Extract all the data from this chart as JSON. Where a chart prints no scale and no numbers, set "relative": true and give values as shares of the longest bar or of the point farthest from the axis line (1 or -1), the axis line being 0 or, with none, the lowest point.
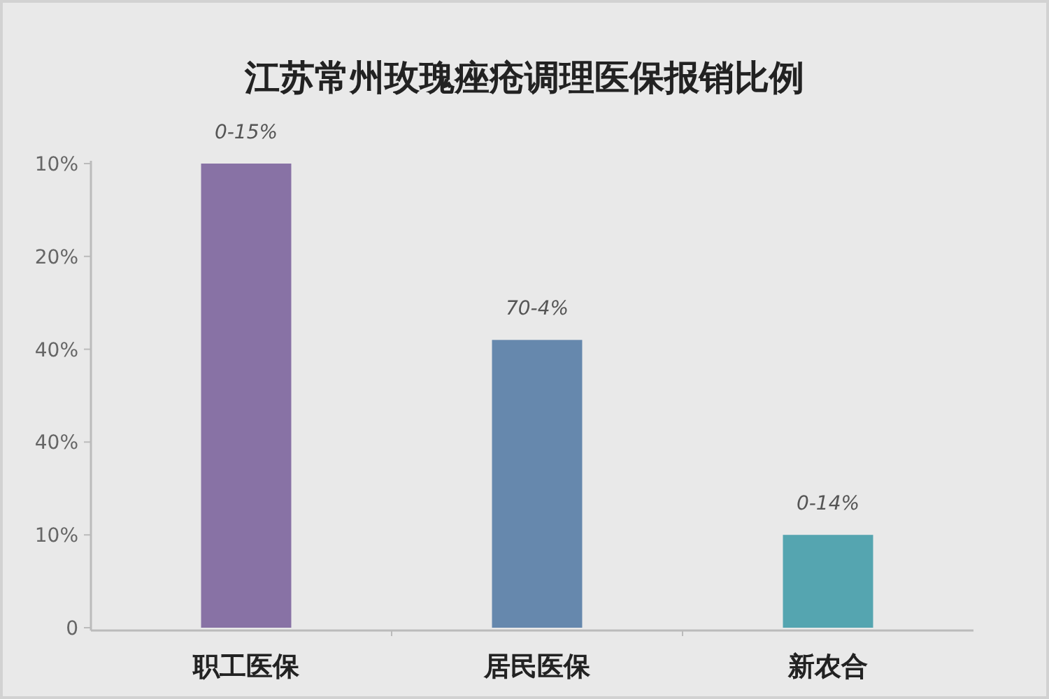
{
  "chart_data": {
    "type": "bar",
    "title": "江苏常州玫瑰痤疮调理医保报销比例",
    "categories": [
      "职工医保",
      "居民医保",
      "新农合"
    ],
    "values": [
      1,
      0.62,
      0.2
    ],
    "relative": true,
    "colors": [
      "#8872a5",
      "#6688ad",
      "#55a5b0"
    ],
    "annotations": [
      "10%",
      "20%",
      "40%",
      "40%",
      "10%",
      "0",
      {
        "text": "0-15%",
        "x": "职工医保",
        "y": 1
      },
      {
        "text": "70-4%",
        "x": "居民医保",
        "y": 0.62
      },
      {
        "text": "0-14%",
        "x": "新农合",
        "y": 0.2
      }
    ]
  }
}
